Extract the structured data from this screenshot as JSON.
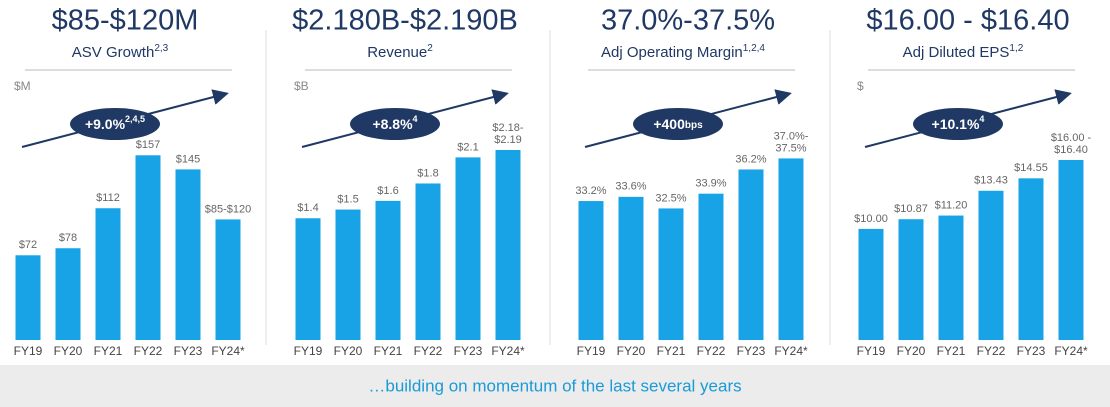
{
  "chart_data": [
    {
      "type": "bar",
      "title": "$85-$120M",
      "subtitle": "ASV Growth",
      "subtitle_sup": "2,3",
      "unit": "$M",
      "badge": "+9.0%",
      "badge_sup": "2,4,5",
      "categories": [
        "FY19",
        "FY20",
        "FY21",
        "FY22",
        "FY23",
        "FY24*"
      ],
      "values": [
        72,
        78,
        112,
        157,
        145,
        102.5
      ],
      "value_labels": [
        "$72",
        "$78",
        "$112",
        "$157",
        "$145",
        "$85-$120"
      ],
      "color": "#17a3e6",
      "ylim": [
        0,
        170
      ]
    },
    {
      "type": "bar",
      "title": "$2.180B-$2.190B",
      "subtitle": "Revenue",
      "subtitle_sup": "2",
      "unit": "$B",
      "badge": "+8.8%",
      "badge_sup": "4",
      "categories": [
        "FY19",
        "FY20",
        "FY21",
        "FY22",
        "FY23",
        "FY24*"
      ],
      "values": [
        1.4,
        1.5,
        1.6,
        1.8,
        2.1,
        2.185
      ],
      "value_labels": [
        "$1.4",
        "$1.5",
        "$1.6",
        "$1.8",
        "$2.1",
        "$2.18-\n$2.19"
      ],
      "color": "#17a3e6",
      "ylim": [
        0,
        2.3
      ]
    },
    {
      "type": "bar",
      "title": "37.0%-37.5%",
      "subtitle": "Adj Operating Margin",
      "subtitle_sup": "1,2,4",
      "badge": "+400",
      "badge_small": "bps",
      "categories": [
        "FY19",
        "FY20",
        "FY21",
        "FY22",
        "FY23",
        "FY24*"
      ],
      "values": [
        33.2,
        33.6,
        32.5,
        33.9,
        36.2,
        37.25
      ],
      "value_labels": [
        "33.2%",
        "33.6%",
        "32.5%",
        "33.9%",
        "36.2%",
        "37.0%-\n37.5%"
      ],
      "color": "#17a3e6",
      "ylim": [
        20,
        39
      ]
    },
    {
      "type": "bar",
      "title": "$16.00 - $16.40",
      "subtitle": "Adj Diluted EPS",
      "subtitle_sup": "1,2",
      "unit": "$",
      "badge": "+10.1%",
      "badge_sup": "4",
      "categories": [
        "FY19",
        "FY20",
        "FY21",
        "FY22",
        "FY23",
        "FY24*"
      ],
      "values": [
        10.0,
        10.87,
        11.2,
        13.43,
        14.55,
        16.2
      ],
      "value_labels": [
        "$10.00",
        "$10.87",
        "$11.20",
        "$13.43",
        "$14.55",
        "$16.00 -\n$16.40"
      ],
      "color": "#17a3e6",
      "ylim": [
        0,
        18
      ]
    }
  ],
  "footer": "…building on momentum of the last several years"
}
